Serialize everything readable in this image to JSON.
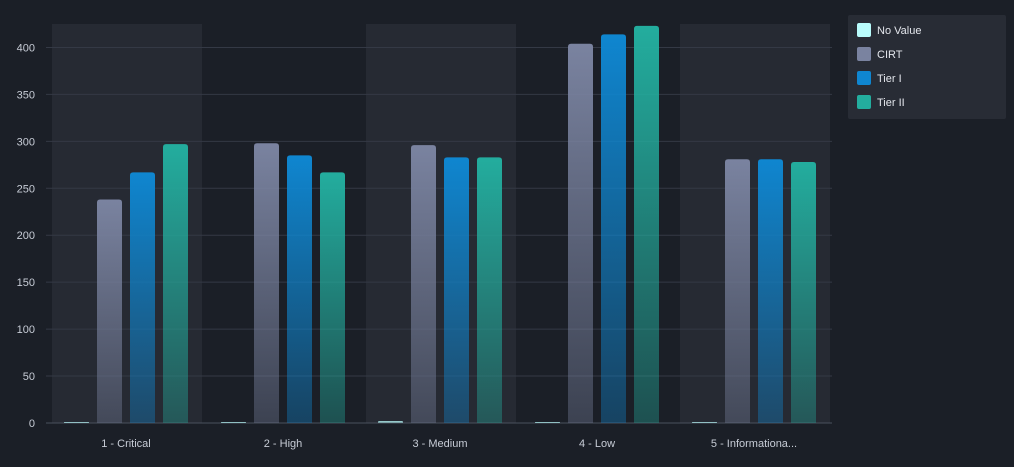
{
  "chart_data": {
    "type": "bar",
    "categories": [
      "1 - Critical",
      "2 - High",
      "3 - Medium",
      "4 - Low",
      "5 - Informationa..."
    ],
    "series": [
      {
        "name": "No Value",
        "color": "#b8fbfb",
        "values": [
          1,
          1,
          2,
          1,
          1
        ]
      },
      {
        "name": "CIRT",
        "color": "#7a83a0",
        "values": [
          238,
          298,
          296,
          404,
          281
        ]
      },
      {
        "name": "Tier I",
        "color": "#0f86d0",
        "values": [
          267,
          285,
          283,
          414,
          281
        ]
      },
      {
        "name": "Tier II",
        "color": "#23ad9e",
        "values": [
          297,
          267,
          283,
          423,
          278
        ]
      }
    ],
    "yticks": [
      0,
      50,
      100,
      150,
      200,
      250,
      300,
      350,
      400
    ],
    "ylim": [
      0,
      400
    ],
    "grid": true,
    "legend_position": "top-right",
    "alternating_band_color": "#262a33",
    "background": "#1b1f27"
  }
}
